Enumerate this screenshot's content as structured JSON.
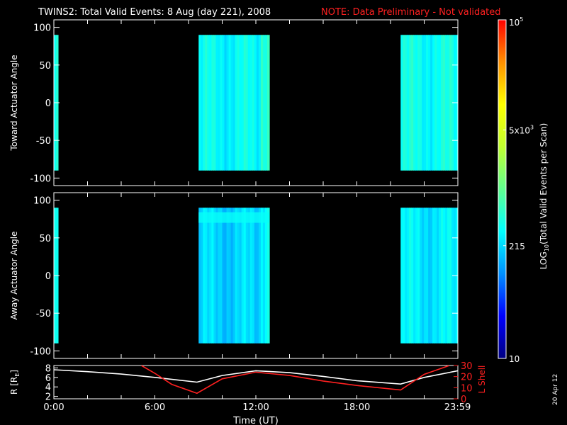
{
  "header": {
    "title": "TWINS2: Total Valid Events:  8 Aug (day 221), 2008",
    "note": "NOTE: Data Preliminary - Not validated",
    "note_color": "#ff2020"
  },
  "side_stamp": "20 Apr 12",
  "colorbar": {
    "label": "LOG10(Total Valid Events per Scan)",
    "label_main": "LOG",
    "label_sub": "10",
    "label_rest": "(Total Valid Events per Scan)",
    "ticks": [
      {
        "value": 100000,
        "text": "10",
        "sup": "5"
      },
      {
        "value": 5000,
        "text": "5x10",
        "sup": "3"
      },
      {
        "value": 215,
        "text": "215",
        "sup": ""
      },
      {
        "value": 10,
        "text": "10",
        "sup": ""
      }
    ],
    "range": [
      10,
      100000
    ],
    "scale": "log",
    "colors": [
      "#000080",
      "#0000ff",
      "#0090ff",
      "#00ffff",
      "#60ff90",
      "#c0ff30",
      "#ffff00",
      "#ff9000",
      "#ff0000"
    ]
  },
  "chart_data": [
    {
      "type": "heatmap",
      "ylabel": "Toward Actuator Angle",
      "ylim": [
        -110,
        110
      ],
      "yticks": [
        100,
        50,
        0,
        -50,
        -100
      ],
      "x_unit": "hours UT",
      "xlim": [
        0,
        24
      ],
      "blocks": [
        {
          "x_start": 0.0,
          "x_end": 0.25,
          "y_min": -90,
          "y_max": 90,
          "level": 350
        },
        {
          "x_start": 8.6,
          "x_end": 12.8,
          "y_min": -90,
          "y_max": 90,
          "level": 320
        },
        {
          "x_start": 20.6,
          "x_end": 24.0,
          "y_min": -90,
          "y_max": 90,
          "level": 360
        }
      ]
    },
    {
      "type": "heatmap",
      "ylabel": "Away Actuator Angle",
      "ylim": [
        -110,
        110
      ],
      "yticks": [
        100,
        50,
        0,
        -50,
        -100
      ],
      "x_unit": "hours UT",
      "xlim": [
        0,
        24
      ],
      "blocks": [
        {
          "x_start": 0.0,
          "x_end": 0.25,
          "y_min": -90,
          "y_max": 90,
          "level": 300
        },
        {
          "x_start": 8.6,
          "x_end": 12.8,
          "y_min": -90,
          "y_max": 90,
          "level": 200
        },
        {
          "x_start": 20.6,
          "x_end": 24.0,
          "y_min": -90,
          "y_max": 90,
          "level": 260
        }
      ]
    },
    {
      "type": "line",
      "xlabel": "Time (UT)",
      "xticks": [
        "0:00",
        "6:00",
        "12:00",
        "18:00",
        "23:59"
      ],
      "xtick_values": [
        0,
        6,
        12,
        18,
        23.98
      ],
      "xlim": [
        0,
        24
      ],
      "left_axis": {
        "label": "R [RE]",
        "label_main": "R [R",
        "label_sub": "E",
        "label_end": "]",
        "ticks": [
          8,
          6,
          4,
          2
        ],
        "ylim": [
          1.5,
          8.5
        ],
        "color": "#ffffff"
      },
      "right_axis": {
        "label": "L Shell",
        "ticks": [
          30,
          20,
          10,
          0
        ],
        "ylim": [
          0,
          30
        ],
        "color": "#ff2020"
      },
      "series": [
        {
          "axis": "left",
          "color": "#ffffff",
          "x": [
            0,
            2,
            4,
            6,
            8.5,
            10,
            12,
            14,
            16,
            18,
            20.6,
            22,
            24
          ],
          "values": [
            7.6,
            7.2,
            6.7,
            6.0,
            5.0,
            6.4,
            7.4,
            7.0,
            6.2,
            5.3,
            4.6,
            6.0,
            7.4
          ]
        },
        {
          "axis": "right",
          "color": "#ff2020",
          "x": [
            5.2,
            6,
            7,
            8.5,
            10,
            12,
            14,
            16,
            18,
            20.6,
            22,
            23.5
          ],
          "values": [
            30,
            23,
            13,
            5,
            18,
            24,
            21,
            16,
            12,
            8,
            22,
            30
          ]
        }
      ]
    }
  ]
}
